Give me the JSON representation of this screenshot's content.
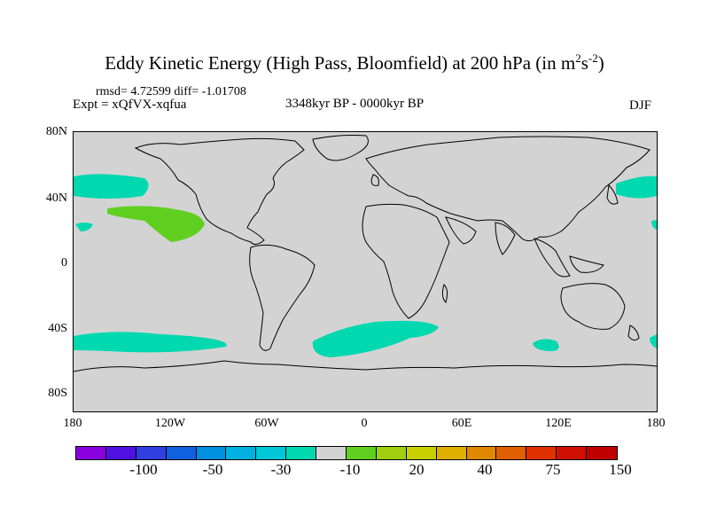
{
  "figure": {
    "title": "Eddy Kinetic Energy (High Pass, Bloomfield) at 200 hPa (in m",
    "title_unit_sup1": "2",
    "title_mid": "s",
    "title_unit_sup2": "-2",
    "title_end": ")",
    "stats": "rmsd= 4.72599 diff= -1.01708",
    "experiment": "Expt = xQfVX-xqfua",
    "period": "3348kyr BP - 0000kyr BP",
    "season": "DJF"
  },
  "map": {
    "lat_labels": [
      "80N",
      "40N",
      "0",
      "40S",
      "80S"
    ],
    "lon_labels": [
      "180",
      "120W",
      "60W",
      "0",
      "60E",
      "120E",
      "180"
    ],
    "background_color": "#d3d3d3",
    "anomaly_regions": [
      {
        "name": "north-pacific-west",
        "category": "-10",
        "color": "#00d8b0"
      },
      {
        "name": "north-pacific-east",
        "category": "-10",
        "color": "#00d8b0"
      },
      {
        "name": "subtropical-pacific",
        "category": "20",
        "color": "#60d020"
      },
      {
        "name": "south-pacific",
        "category": "-10",
        "color": "#00d8b0"
      },
      {
        "name": "south-atlantic",
        "category": "-10",
        "color": "#00d8b0"
      },
      {
        "name": "indian-ocean-south",
        "category": "-10",
        "color": "#00d8b0"
      }
    ]
  },
  "colorbar": {
    "colors": [
      "#8a00e0",
      "#5010e0",
      "#3040e0",
      "#1060e0",
      "#0090e0",
      "#00b0e0",
      "#00c8d8",
      "#00d8b0",
      "#d3d3d3",
      "#60d020",
      "#a0d010",
      "#c8d000",
      "#e0b000",
      "#e08800",
      "#e06000",
      "#e03000",
      "#d01000",
      "#c00000"
    ],
    "labels": [
      "-100",
      "-50",
      "-30",
      "-10",
      "20",
      "40",
      "75",
      "150"
    ]
  }
}
